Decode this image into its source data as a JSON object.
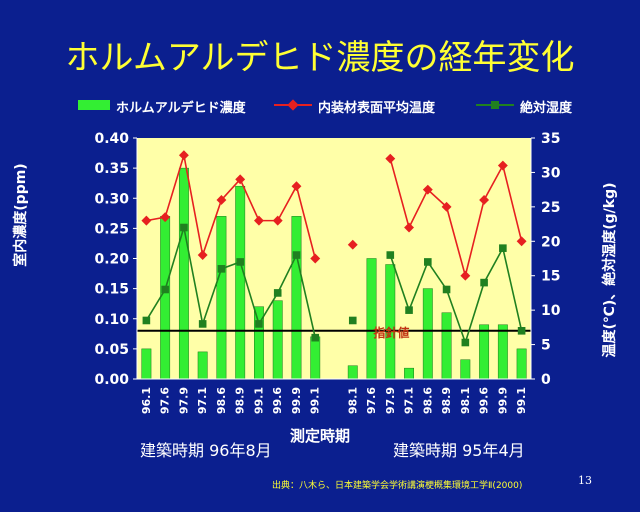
{
  "slide": {
    "title": "ホルムアルデヒド濃度の経年変化",
    "source": "出典：八木ら、日本建築学会学術講演梗概集環境工学Ⅱ(2000)",
    "page_number": "13",
    "period_labels": [
      "建築時期 96年8月",
      "建築時期 95年4月"
    ]
  },
  "colors": {
    "background": "#0b1f8f",
    "plot_area": "#ffffa8",
    "bar": "#33ee33",
    "temperature_line": "#e62020",
    "humidity_line": "#208020",
    "guideline": "#000000",
    "guideline_label": "#c03010",
    "title": "#ffff33"
  },
  "chart_data": {
    "type": "bar",
    "xlabel": "測定時期",
    "ylabel_left": "室内濃度(ppm)",
    "ylabel_right": "温度(℃)、絶対湿度(g/kg)",
    "ylim_left": [
      0,
      0.4
    ],
    "ylim_right": [
      0,
      35
    ],
    "yticks_left": [
      "0.00",
      "0.05",
      "0.10",
      "0.15",
      "0.20",
      "0.25",
      "0.30",
      "0.35",
      "0.40"
    ],
    "yticks_right": [
      "0",
      "5",
      "10",
      "15",
      "20",
      "25",
      "30",
      "35"
    ],
    "legend_position": "top",
    "grid": false,
    "categories": [
      "96.1",
      "97.6",
      "97.9",
      "97.1",
      "98.6",
      "98.9",
      "99.1",
      "99.6",
      "99.9",
      "99.1",
      "",
      "98.1",
      "97.6",
      "97.9",
      "97.1",
      "98.6",
      "98.9",
      "98.1",
      "99.6",
      "99.9",
      "99.1"
    ],
    "series": [
      {
        "name": "ホルムアルデヒド濃度",
        "type": "bar",
        "axis": "left",
        "values": [
          0.05,
          0.27,
          0.35,
          0.045,
          0.27,
          0.32,
          0.12,
          0.13,
          0.27,
          0.07,
          null,
          0.022,
          0.2,
          0.19,
          0.018,
          0.15,
          0.11,
          0.032,
          0.09,
          0.09,
          0.05
        ]
      },
      {
        "name": "内装材表面平均温度",
        "type": "line",
        "axis": "right",
        "values": [
          23,
          23.5,
          32.5,
          18,
          26,
          29,
          23,
          23,
          28,
          17.5,
          null,
          19.5,
          null,
          32,
          22,
          27.5,
          25,
          15,
          26,
          31,
          20
        ]
      },
      {
        "name": "絶対湿度",
        "type": "line",
        "axis": "right",
        "values": [
          8.5,
          13,
          22,
          8,
          16,
          17,
          8,
          12.5,
          18,
          6,
          null,
          8.5,
          null,
          18,
          10,
          17,
          13,
          5.3,
          14,
          19,
          7
        ]
      }
    ],
    "annotation": {
      "label": "指針値",
      "value": 0.08
    }
  }
}
